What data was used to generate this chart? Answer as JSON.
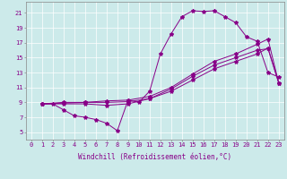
{
  "background_color": "#cceaea",
  "line_color": "#880088",
  "xlabel": "Windchill (Refroidissement éolien,°C)",
  "xlim": [
    -0.5,
    23.5
  ],
  "ylim": [
    4.0,
    22.5
  ],
  "xticks": [
    0,
    1,
    2,
    3,
    4,
    5,
    6,
    7,
    8,
    9,
    10,
    11,
    12,
    13,
    14,
    15,
    16,
    17,
    18,
    19,
    20,
    21,
    22,
    23
  ],
  "yticks": [
    5,
    7,
    9,
    11,
    13,
    15,
    17,
    19,
    21
  ],
  "line1_x": [
    1,
    2,
    3,
    4,
    5,
    6,
    7,
    8,
    9,
    10,
    11,
    12,
    13,
    14,
    15,
    16,
    17,
    18,
    19,
    20,
    21,
    22,
    23
  ],
  "line1_y": [
    8.8,
    8.8,
    8.0,
    7.2,
    7.0,
    6.7,
    6.2,
    5.2,
    9.3,
    9.0,
    10.5,
    15.5,
    18.2,
    20.5,
    21.3,
    21.2,
    21.3,
    20.5,
    19.7,
    17.8,
    17.2,
    13.0,
    12.4
  ],
  "line2_x": [
    1,
    3,
    5,
    7,
    9,
    11,
    13,
    15,
    17,
    19,
    21,
    22,
    23
  ],
  "line2_y": [
    8.8,
    8.8,
    8.8,
    8.6,
    8.8,
    9.5,
    10.8,
    12.5,
    14.0,
    15.0,
    16.0,
    16.2,
    11.6
  ],
  "line3_x": [
    1,
    3,
    5,
    7,
    9,
    11,
    13,
    15,
    17,
    19,
    21,
    22,
    23
  ],
  "line3_y": [
    8.8,
    8.9,
    9.0,
    9.0,
    9.1,
    9.5,
    10.5,
    12.0,
    13.5,
    14.5,
    15.5,
    16.3,
    11.6
  ],
  "line4_x": [
    1,
    3,
    5,
    7,
    9,
    11,
    13,
    15,
    17,
    19,
    21,
    22,
    23
  ],
  "line4_y": [
    8.8,
    9.0,
    9.0,
    9.2,
    9.3,
    9.8,
    11.0,
    12.8,
    14.5,
    15.5,
    16.8,
    17.5,
    11.6
  ],
  "tick_fontsize": 5,
  "xlabel_fontsize": 5.5,
  "grid_color": "#b0d8d8",
  "spine_color": "#888888"
}
